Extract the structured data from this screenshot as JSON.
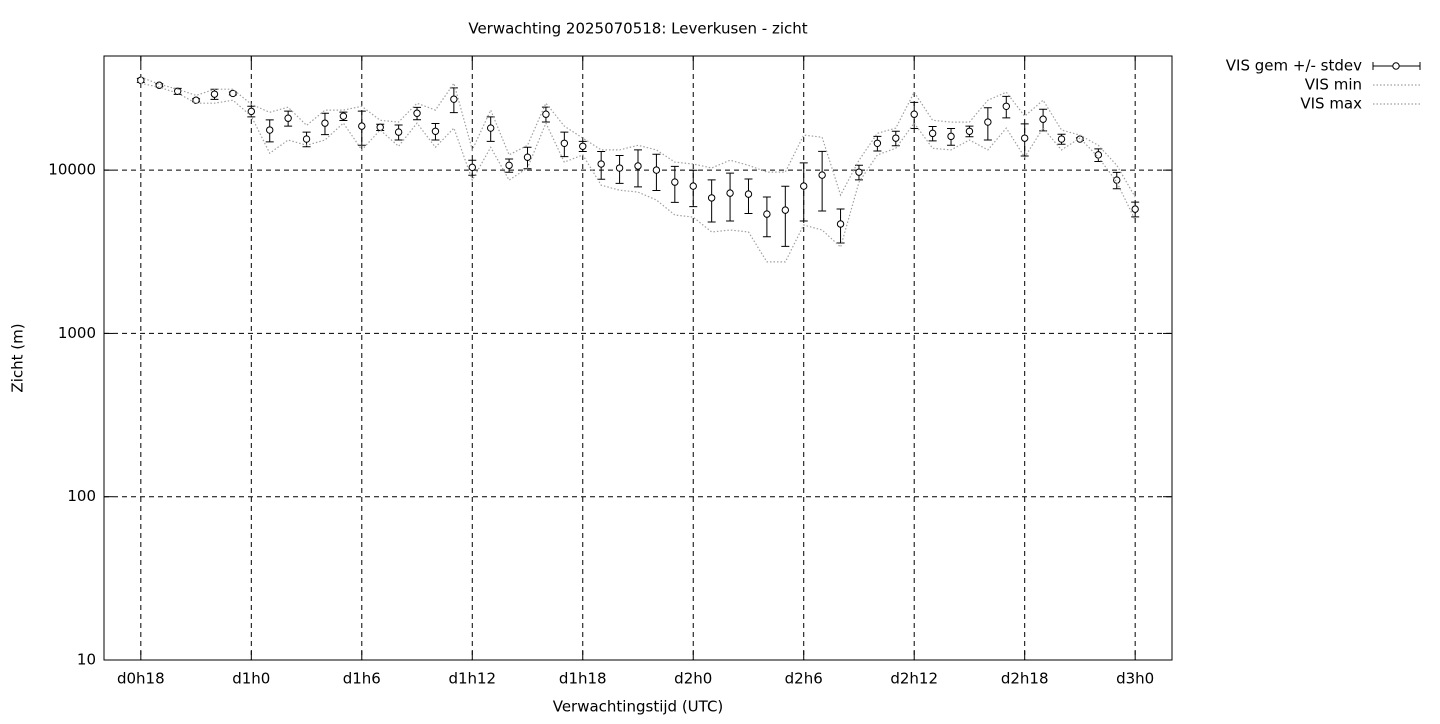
{
  "chart_data": {
    "type": "errorbar-line",
    "title": "Verwachting 2025070518: Leverkusen - zicht",
    "xlabel": "Verwachtingstijd (UTC)",
    "ylabel": "Zicht (m)",
    "x": [
      18,
      19,
      20,
      21,
      22,
      23,
      24,
      25,
      26,
      27,
      28,
      29,
      30,
      31,
      32,
      33,
      34,
      35,
      36,
      37,
      38,
      39,
      40,
      41,
      42,
      43,
      44,
      45,
      46,
      47,
      48,
      49,
      50,
      51,
      52,
      53,
      54,
      55,
      56,
      57,
      58,
      59,
      60,
      61,
      62,
      63,
      64,
      65,
      66,
      67,
      68,
      69,
      70,
      71,
      72
    ],
    "xlim": [
      16,
      74
    ],
    "xticks": [
      {
        "value": 18,
        "label": "d0h18"
      },
      {
        "value": 24,
        "label": "d1h0"
      },
      {
        "value": 30,
        "label": "d1h6"
      },
      {
        "value": 36,
        "label": "d1h12"
      },
      {
        "value": 42,
        "label": "d1h18"
      },
      {
        "value": 48,
        "label": "d2h0"
      },
      {
        "value": 54,
        "label": "d2h6"
      },
      {
        "value": 60,
        "label": "d2h12"
      },
      {
        "value": 66,
        "label": "d2h18"
      },
      {
        "value": 72,
        "label": "d3h0"
      }
    ],
    "ylim": [
      10,
      50000
    ],
    "yticks": [
      10,
      100,
      1000,
      10000
    ],
    "ylog": true,
    "grid": true,
    "legend": "outside-top-right",
    "series": [
      {
        "name": "VIS gem +/- stdev",
        "color": "#000000",
        "values": [
          35500,
          33100,
          30400,
          26800,
          29200,
          29500,
          22900,
          17600,
          20800,
          15500,
          19400,
          21400,
          18600,
          18300,
          17100,
          22300,
          17300,
          27200,
          10400,
          18100,
          10700,
          12000,
          22000,
          14600,
          14000,
          10900,
          10300,
          10600,
          10000,
          8450,
          7980,
          6760,
          7230,
          7130,
          5380,
          5690,
          7980,
          9320,
          4680,
          9720,
          14600,
          15700,
          22000,
          16800,
          16100,
          17300,
          19700,
          24600,
          15700,
          20500,
          15500,
          15500,
          12400,
          8690,
          5770
        ],
        "errors": [
          1000,
          700,
          1300,
          550,
          2100,
          600,
          1700,
          2700,
          2200,
          1600,
          2900,
          1250,
          4400,
          800,
          1800,
          1950,
          2000,
          4700,
          1100,
          3100,
          1000,
          1800,
          2300,
          2500,
          1000,
          2100,
          2000,
          2700,
          2500,
          2100,
          2000,
          1950,
          2350,
          1700,
          1470,
          2280,
          3100,
          3700,
          1100,
          1000,
          1500,
          1600,
          4000,
          1700,
          1900,
          1300,
          4400,
          3700,
          3500,
          3100,
          1100,
          300,
          1100,
          1000,
          600
        ]
      },
      {
        "name": "VIS min",
        "color": "#a0a0a0",
        "values": [
          34000,
          32200,
          29600,
          25700,
          25700,
          26800,
          21400,
          12700,
          15300,
          14200,
          15300,
          19400,
          13300,
          17600,
          14000,
          19400,
          13800,
          18100,
          8690,
          13800,
          8690,
          10300,
          19400,
          11200,
          12400,
          8090,
          7540,
          7340,
          6560,
          5310,
          5160,
          4180,
          4300,
          4180,
          2740,
          2740,
          4610,
          4300,
          3380,
          8450,
          12400,
          13600,
          19400,
          13600,
          13300,
          15300,
          13300,
          18100,
          12000,
          18100,
          13300,
          15700,
          12000,
          8450,
          4940
        ]
      },
      {
        "name": "VIS max",
        "color": "#a0a0a0",
        "values": [
          37100,
          33600,
          31300,
          28700,
          31300,
          31300,
          25300,
          22600,
          24300,
          18800,
          23300,
          23300,
          24600,
          20200,
          19700,
          25700,
          23300,
          34000,
          13300,
          23300,
          12400,
          14200,
          25700,
          18600,
          15700,
          13300,
          13300,
          14200,
          13300,
          11200,
          10900,
          10300,
          11500,
          10700,
          9720,
          9720,
          16400,
          15900,
          7030,
          11500,
          16800,
          18100,
          30000,
          20200,
          19700,
          19700,
          26800,
          30000,
          21400,
          26800,
          17600,
          16400,
          14200,
          10700,
          6840
        ]
      }
    ]
  }
}
